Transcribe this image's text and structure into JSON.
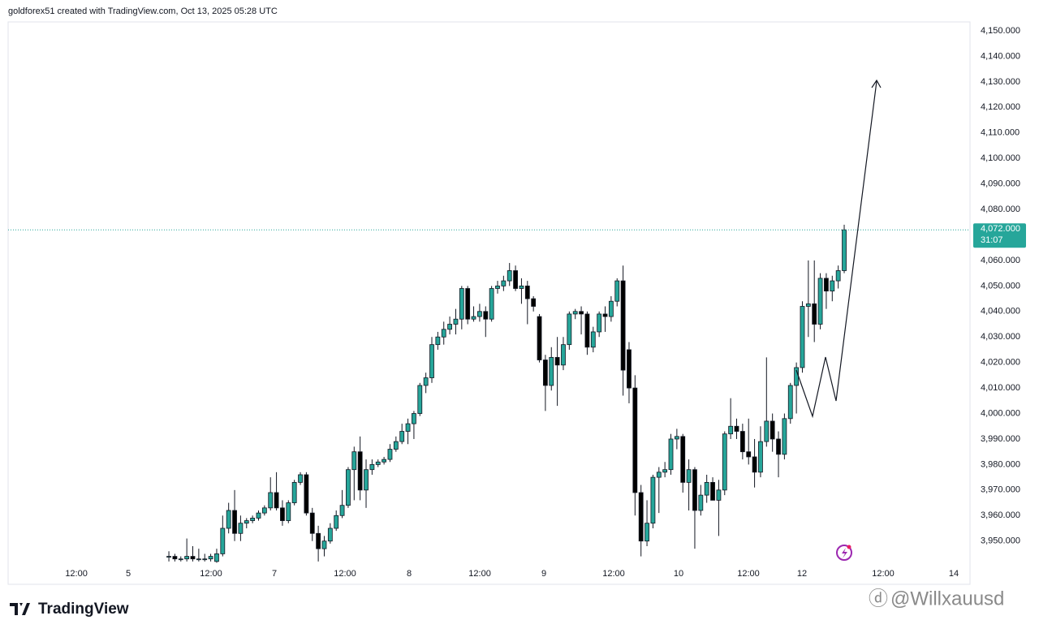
{
  "header": "goldforex51 created with TradingView.com, Oct 13, 2025 05:28 UTC",
  "logo": "TradingView",
  "watermark": "@Willxauusd",
  "chart_data": {
    "type": "candlestick",
    "up_color": "#26a69a",
    "down_color": "#000000",
    "grid": false,
    "xlim": [
      -26.9,
      134.05
    ],
    "ylim": [
      3941,
      4153.5
    ],
    "yticks": [
      {
        "value": 3950,
        "label": "3,950.000"
      },
      {
        "value": 3960,
        "label": "3,960.000"
      },
      {
        "value": 3970,
        "label": "3,970.000"
      },
      {
        "value": 3980,
        "label": "3,980.000"
      },
      {
        "value": 3990,
        "label": "3,990.000"
      },
      {
        "value": 4000,
        "label": "4,000.000"
      },
      {
        "value": 4010,
        "label": "4,010.000"
      },
      {
        "value": 4020,
        "label": "4,020.000"
      },
      {
        "value": 4030,
        "label": "4,030.000"
      },
      {
        "value": 4040,
        "label": "4,040.000"
      },
      {
        "value": 4050,
        "label": "4,050.000"
      },
      {
        "value": 4060,
        "label": "4,060.000"
      },
      {
        "value": 4070,
        "label": "4,070.000"
      },
      {
        "value": 4080,
        "label": "4,080.000"
      },
      {
        "value": 4090,
        "label": "4,090.000"
      },
      {
        "value": 4100,
        "label": "4,100.000"
      },
      {
        "value": 4110,
        "label": "4,110.000"
      },
      {
        "value": 4120,
        "label": "4,120.000"
      },
      {
        "value": 4130,
        "label": "4,130.000"
      },
      {
        "value": 4140,
        "label": "4,140.000"
      },
      {
        "value": 4150,
        "label": "4,150.000"
      }
    ],
    "xticks": [
      {
        "value": -15.48,
        "label": "12:00"
      },
      {
        "value": -6.79,
        "label": "5"
      },
      {
        "value": 7.06,
        "label": "12:00"
      },
      {
        "value": 17.66,
        "label": "7"
      },
      {
        "value": 29.47,
        "label": "12:00"
      },
      {
        "value": 40.2,
        "label": "8"
      },
      {
        "value": 52.02,
        "label": "12:00"
      },
      {
        "value": 62.75,
        "label": "9"
      },
      {
        "value": 74.43,
        "label": "12:00"
      },
      {
        "value": 85.29,
        "label": "10"
      },
      {
        "value": 96.97,
        "label": "12:00"
      },
      {
        "value": 105.93,
        "label": "12"
      },
      {
        "value": 119.52,
        "label": "12:00"
      },
      {
        "value": 131.33,
        "label": "14"
      }
    ],
    "last_price": {
      "value": 4072,
      "label": "4,072.000"
    },
    "countdown": "31:07",
    "open": [
      3944,
      3944,
      3943,
      3943,
      3944,
      3943,
      3943,
      3943,
      3942,
      3945,
      3955,
      3962,
      3953,
      3957,
      3958,
      3959,
      3961,
      3963,
      3969,
      3963,
      3958,
      3965,
      3973,
      3976,
      3961,
      3953,
      3947,
      3950,
      3955,
      3960,
      3964,
      3978,
      3985,
      3970,
      3978,
      3980,
      3981,
      3982,
      3986,
      3989,
      3993,
      3996,
      4000,
      4011,
      4014,
      4027,
      4030,
      4033,
      4035,
      4037,
      4049,
      4037,
      4038,
      4040,
      4037,
      4049,
      4050,
      4052,
      4056,
      4049,
      4050,
      4045,
      4038,
      4021,
      4011,
      4022,
      4019,
      4027,
      4039,
      4040,
      4039,
      4026,
      4032,
      4039,
      4038,
      4044,
      4052,
      4025,
      4010,
      3969,
      3950,
      3957,
      3975,
      3977,
      3978,
      3990,
      3991,
      3973,
      3978,
      3962,
      3968,
      3973,
      3966,
      3970,
      3992,
      3995,
      3993,
      3985,
      3983,
      3977,
      3989,
      3997,
      3990,
      3984,
      3998,
      4011,
      4018,
      4042,
      4043,
      4035,
      4053,
      4048,
      4052,
      4056
    ],
    "high": [
      3946,
      3945,
      3944,
      3951,
      3948,
      3947,
      3945,
      3945,
      3947,
      3960,
      3965,
      3970,
      3960,
      3959,
      3960,
      3962,
      3964,
      3975,
      3977,
      3966,
      3966,
      3974,
      3977,
      3977,
      3963,
      3956,
      3952,
      3957,
      3962,
      3970,
      3979,
      3987,
      3991,
      3982,
      3982,
      3982,
      3983,
      3988,
      3991,
      3996,
      3998,
      4001,
      4012,
      4016,
      4030,
      4032,
      4036,
      4038,
      4041,
      4050,
      4050,
      4042,
      4043,
      4042,
      4050,
      4052,
      4054,
      4059,
      4058,
      4053,
      4052,
      4046,
      4039,
      4023,
      4026,
      4030,
      4030,
      4040,
      4041,
      4042,
      4040,
      4034,
      4040,
      4042,
      4046,
      4053,
      4058,
      4028,
      4015,
      3972,
      3966,
      3976,
      3979,
      3981,
      3992,
      3994,
      3992,
      3982,
      3979,
      3972,
      3976,
      3975,
      3974,
      3993,
      4006,
      3998,
      3996,
      3998,
      3990,
      3995,
      4022,
      4000,
      3993,
      4000,
      4012,
      4020,
      4044,
      4060,
      4060,
      4055,
      4055,
      4054,
      4058,
      4074
    ],
    "low": [
      3942,
      3942,
      3942,
      3942,
      3942,
      3942,
      3942,
      3942,
      3941.5,
      3944,
      3953,
      3950,
      3950,
      3955,
      3957,
      3958,
      3960,
      3962,
      3962,
      3956,
      3957,
      3964,
      3972,
      3960,
      3950,
      3942,
      3944,
      3949,
      3954,
      3959,
      3963,
      3966,
      3966,
      3963,
      3976,
      3979,
      3980,
      3981,
      3985,
      3988,
      3988,
      3990,
      3999,
      4008,
      4012,
      4025,
      4027,
      4031,
      4031,
      4033,
      4035,
      4036,
      4036,
      4030,
      4036,
      4047,
      4048,
      4050,
      4048,
      4043,
      4035,
      4040,
      4020,
      4001,
      4009,
      4003,
      4017,
      4025,
      4037,
      4031,
      4023,
      4024,
      4030,
      4032,
      4036,
      4042,
      4007,
      4004,
      3960,
      3944,
      3948,
      3955,
      3961,
      3975,
      3976,
      3986,
      3969,
      3962,
      3947,
      3960,
      3965,
      3966,
      3952,
      3968,
      3990,
      3990,
      3982,
      3980,
      3971,
      3975,
      3987,
      3985,
      3975,
      3982,
      3996,
      4000,
      4016,
      4030,
      4028,
      4033,
      4041,
      4044,
      4049,
      4055
    ],
    "close": [
      3944,
      3943,
      3943,
      3944,
      3943,
      3943,
      3943,
      3944,
      3945,
      3955,
      3962,
      3953,
      3957,
      3958,
      3959,
      3961,
      3963,
      3969,
      3963,
      3958,
      3965,
      3973,
      3976,
      3961,
      3953,
      3947,
      3950,
      3955,
      3960,
      3964,
      3978,
      3985,
      3970,
      3978,
      3980,
      3981,
      3982,
      3986,
      3989,
      3993,
      3996,
      4000,
      4011,
      4014,
      4027,
      4030,
      4033,
      4035,
      4037,
      4049,
      4037,
      4038,
      4040,
      4037,
      4049,
      4050,
      4052,
      4056,
      4049,
      4050,
      4045,
      4042,
      4021,
      4011,
      4022,
      4019,
      4027,
      4039,
      4040,
      4039,
      4026,
      4032,
      4039,
      4038,
      4044,
      4052,
      4017,
      4010,
      3969,
      3950,
      3957,
      3975,
      3977,
      3978,
      3990,
      3991,
      3973,
      3978,
      3962,
      3968,
      3973,
      3966,
      3970,
      3992,
      3995,
      3993,
      3985,
      3983,
      3977,
      3989,
      3997,
      3990,
      3984,
      3998,
      4011,
      4018,
      4042,
      4043,
      4035,
      4053,
      4048,
      4052,
      4056,
      4072
    ]
  }
}
